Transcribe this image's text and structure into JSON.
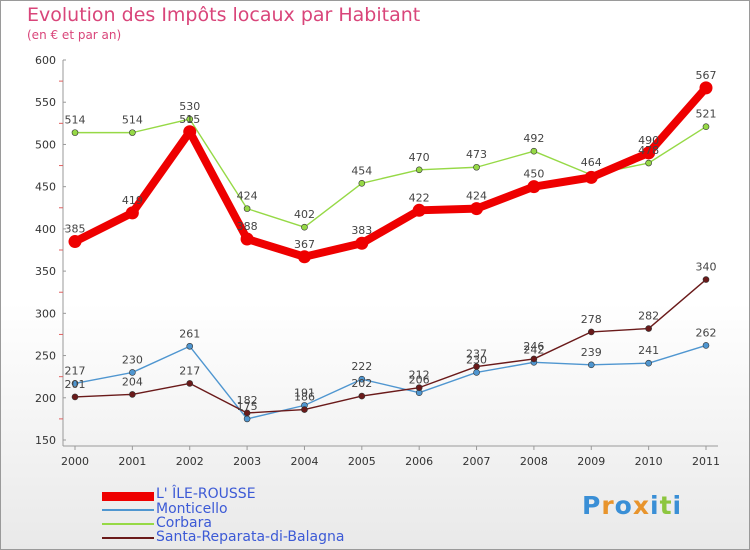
{
  "header": {
    "title": "Evolution des Impôts locaux par Habitant",
    "subtitle": "(en € et par an)"
  },
  "logo": {
    "text": "Proxiti",
    "colors": [
      "#3a8fd6",
      "#e8942c",
      "#3a8fd6",
      "#e8942c",
      "#3a8fd6",
      "#8dc63f",
      "#3a8fd6"
    ]
  },
  "chart_data": {
    "type": "line",
    "title": "Evolution des Impôts locaux par Habitant",
    "ylabel": "(en € et par an)",
    "xlabel": "",
    "x": [
      "2000",
      "2001",
      "2002",
      "2003",
      "2004",
      "2005",
      "2006",
      "2007",
      "2008",
      "2009",
      "2010",
      "2011"
    ],
    "ylim": [
      150,
      600
    ],
    "yticks": [
      150,
      200,
      250,
      300,
      350,
      400,
      450,
      500,
      550,
      600
    ],
    "grid": false,
    "legend_position": "bottom-left",
    "series": [
      {
        "name": "L' ÎLE-ROUSSE",
        "color": "#ee0000",
        "values": [
          385,
          419,
          515,
          388,
          367,
          383,
          422,
          424,
          450,
          461,
          490,
          567
        ]
      },
      {
        "name": "Monticello",
        "color": "#4f96d0",
        "values": [
          217,
          230,
          261,
          175,
          191,
          222,
          206,
          230,
          242,
          239,
          241,
          262
        ]
      },
      {
        "name": "Corbara",
        "color": "#96d946",
        "values": [
          514,
          514,
          530,
          424,
          402,
          454,
          470,
          473,
          492,
          464,
          478,
          521
        ]
      },
      {
        "name": "Santa-Reparata-di-Balagna",
        "color": "#6a1a1a",
        "values": [
          201,
          204,
          217,
          182,
          186,
          202,
          212,
          237,
          246,
          278,
          282,
          340
        ]
      }
    ]
  }
}
